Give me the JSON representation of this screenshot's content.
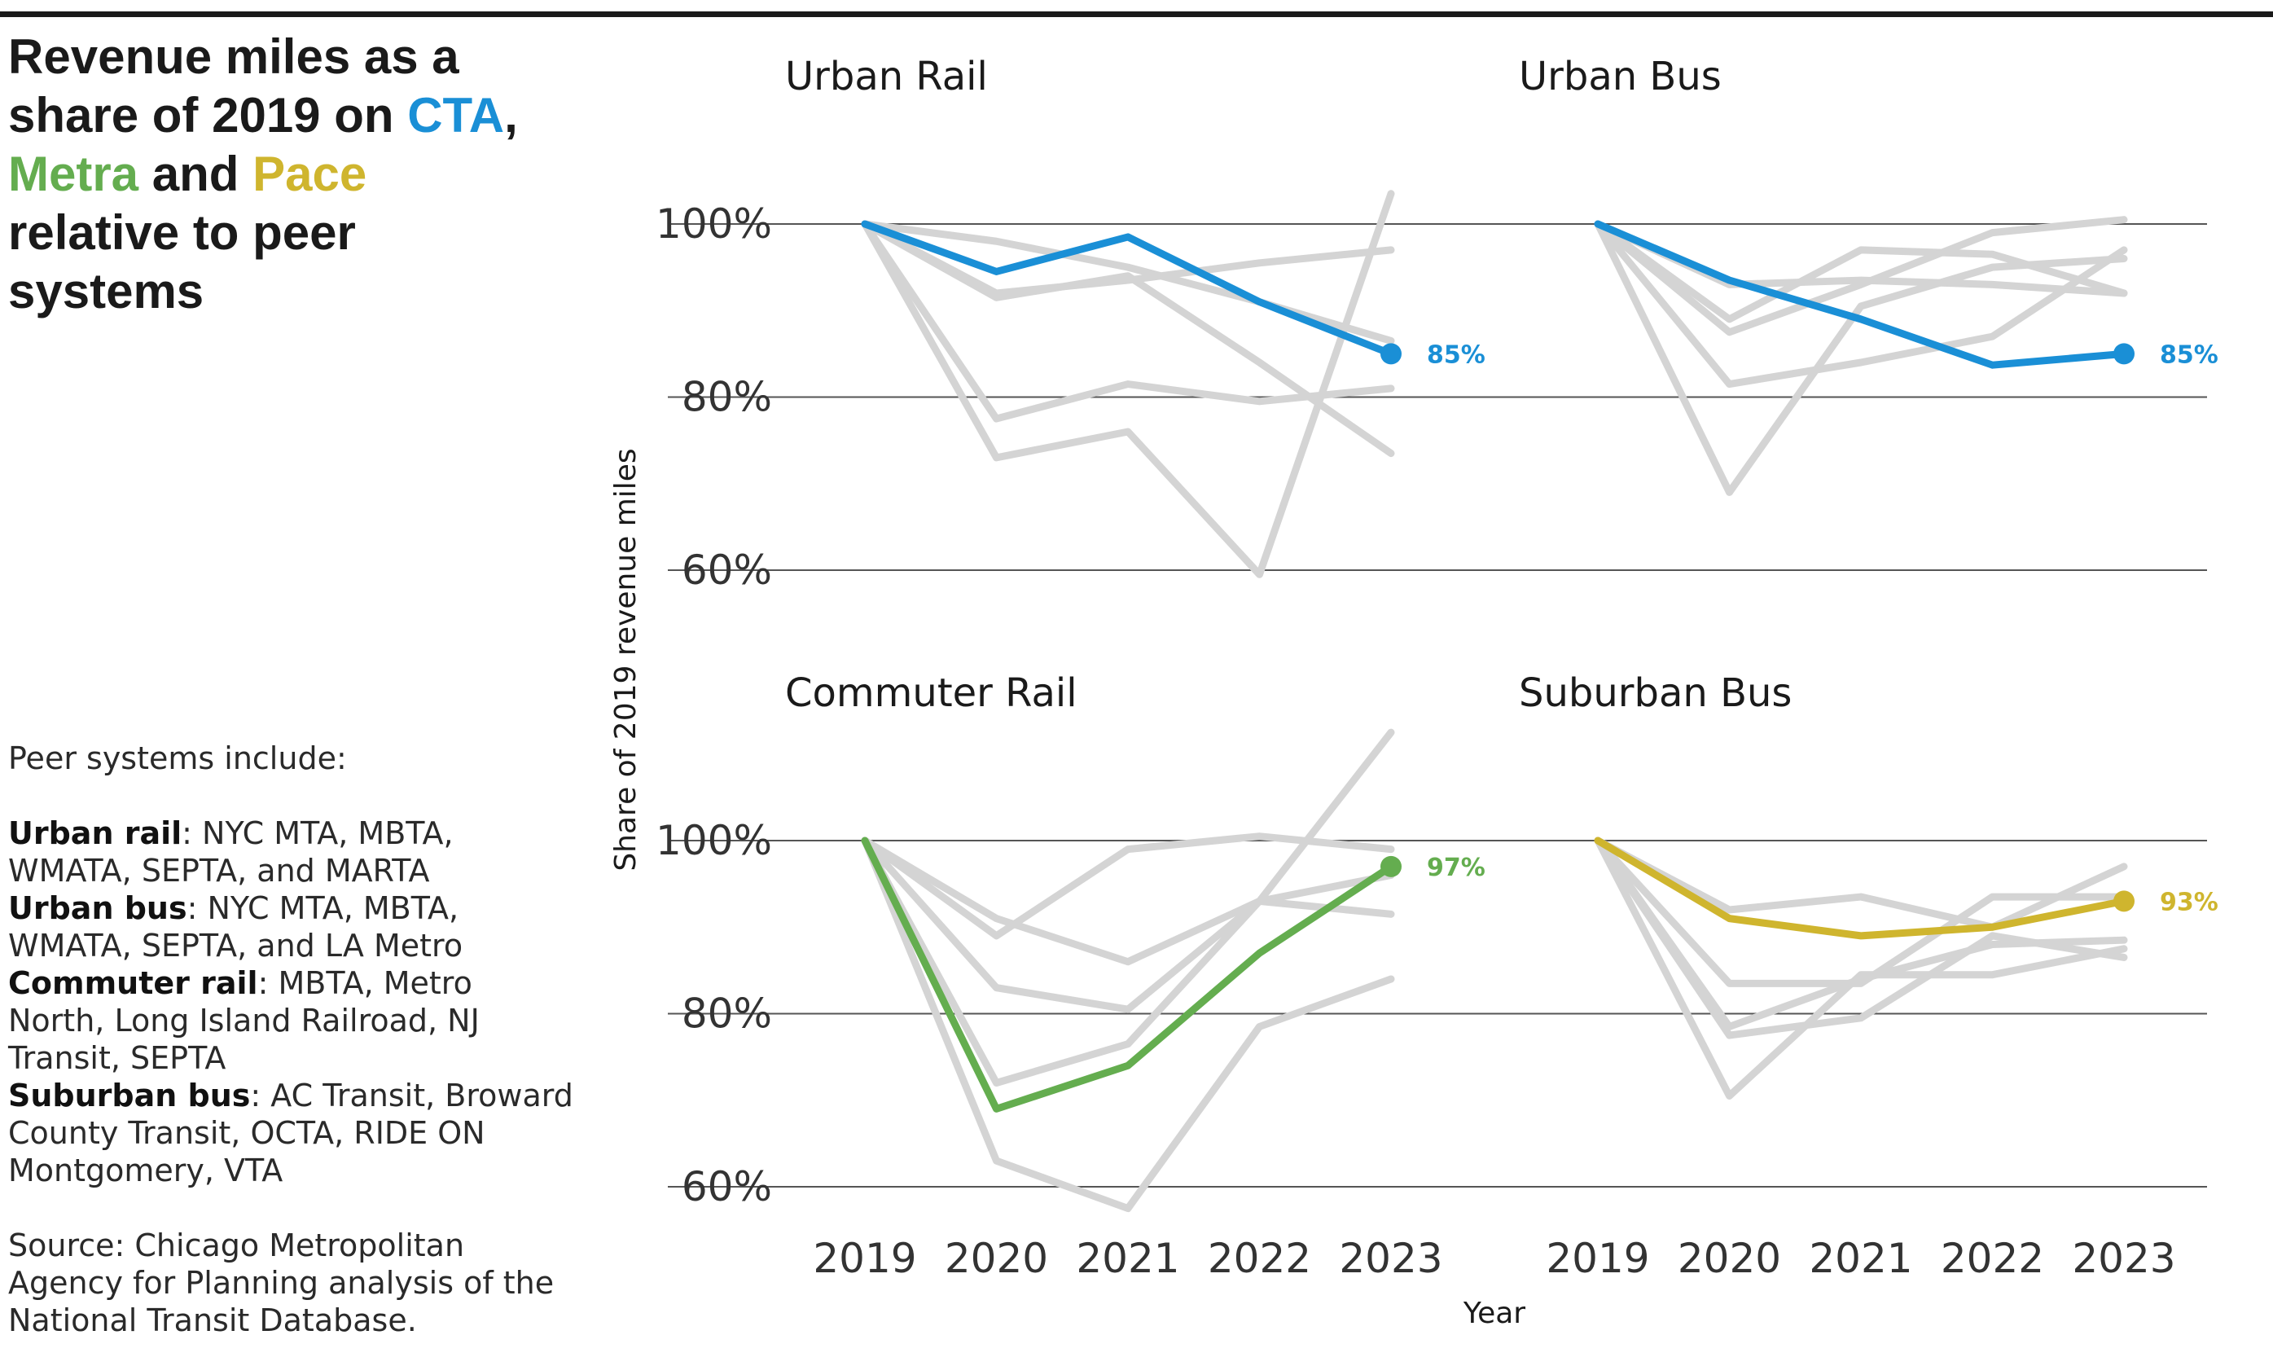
{
  "title": {
    "line1": "Revenue miles as a",
    "line2_pre": "share of 2019 on ",
    "cta": "CTA",
    "line2_post": ",",
    "metra": "Metra",
    "and": " and ",
    "pace": "Pace",
    "line4": "relative to peer",
    "line5": "systems"
  },
  "notes": {
    "intro": "Peer systems include:",
    "groups": [
      {
        "name": "Urban rail",
        "text": ": NYC MTA, MBTA, WMATA, SEPTA, and MARTA"
      },
      {
        "name": "Urban bus",
        "text": ": NYC MTA, MBTA, WMATA, SEPTA, and LA Metro"
      },
      {
        "name": "Commuter rail",
        "text": ": MBTA, Metro North, Long Island Railroad, NJ Transit, SEPTA"
      },
      {
        "name": "Suburban bus",
        "text": ": AC Transit, Broward County Transit, OCTA, RIDE ON Montgomery, VTA"
      }
    ],
    "source": "Source: Chicago Metropolitan Agency for Planning analysis of the National Transit Database."
  },
  "colors": {
    "cta": "#1a8fd6",
    "metra": "#64ad4f",
    "pace": "#cfb52e",
    "peer": "#d4d4d4",
    "grid": "#555555"
  },
  "chart_data": {
    "type": "line",
    "ylabel": "Share of 2019 revenue miles",
    "xlabel": "Year",
    "x": [
      "2019",
      "2020",
      "2021",
      "2022",
      "2023"
    ],
    "y_ticks": [
      "100%",
      "80%",
      "60%"
    ],
    "ylim": [
      0.6,
      1.0
    ],
    "grid": "horizontal",
    "panels": [
      {
        "title": "Urban Rail",
        "highlight": {
          "name": "CTA",
          "color": "#1a8fd6",
          "values": [
            1.0,
            0.945,
            0.985,
            0.91,
            0.85
          ],
          "label": "85%"
        },
        "peers": [
          [
            1.0,
            0.98,
            0.95,
            0.91,
            0.865
          ],
          [
            1.0,
            0.92,
            0.935,
            0.955,
            0.97
          ],
          [
            1.0,
            0.915,
            0.94,
            0.84,
            0.735
          ],
          [
            1.0,
            0.775,
            0.815,
            0.795,
            0.81
          ],
          [
            1.0,
            0.73,
            0.76,
            0.595,
            1.035
          ]
        ]
      },
      {
        "title": "Urban Bus",
        "highlight": {
          "name": "CTA",
          "color": "#1a8fd6",
          "values": [
            1.0,
            0.935,
            0.89,
            0.837,
            0.85
          ],
          "label": "85%"
        },
        "peers": [
          [
            1.0,
            0.93,
            0.935,
            0.93,
            0.92
          ],
          [
            1.0,
            0.89,
            0.97,
            0.965,
            0.92
          ],
          [
            1.0,
            0.875,
            0.93,
            0.99,
            1.005
          ],
          [
            1.0,
            0.815,
            0.84,
            0.87,
            0.97
          ],
          [
            1.0,
            0.69,
            0.905,
            0.95,
            0.96
          ]
        ]
      },
      {
        "title": "Commuter Rail",
        "highlight": {
          "name": "Metra",
          "color": "#64ad4f",
          "values": [
            1.0,
            0.69,
            0.74,
            0.87,
            0.97
          ],
          "label": "97%"
        },
        "peers": [
          [
            1.0,
            0.89,
            0.99,
            1.005,
            0.99
          ],
          [
            1.0,
            0.91,
            0.86,
            0.93,
            0.96
          ],
          [
            1.0,
            0.83,
            0.805,
            0.93,
            0.915
          ],
          [
            1.0,
            0.72,
            0.765,
            0.93,
            1.125
          ],
          [
            1.0,
            0.63,
            0.575,
            0.785,
            0.84
          ]
        ]
      },
      {
        "title": "Suburban Bus",
        "highlight": {
          "name": "Pace",
          "color": "#cfb52e",
          "values": [
            1.0,
            0.91,
            0.89,
            0.9,
            0.93
          ],
          "label": "93%"
        },
        "peers": [
          [
            1.0,
            0.92,
            0.935,
            0.9,
            0.97
          ],
          [
            1.0,
            0.835,
            0.835,
            0.935,
            0.935
          ],
          [
            1.0,
            0.785,
            0.84,
            0.88,
            0.885
          ],
          [
            1.0,
            0.775,
            0.795,
            0.89,
            0.865
          ],
          [
            1.0,
            0.705,
            0.845,
            0.845,
            0.875
          ]
        ]
      }
    ]
  }
}
